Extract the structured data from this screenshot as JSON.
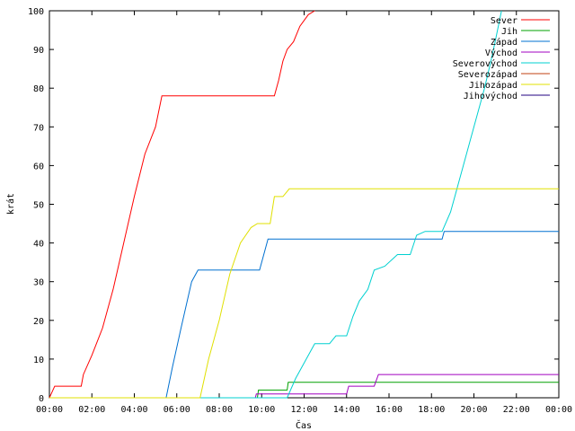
{
  "chart_data": {
    "type": "line",
    "xlabel": "Čas",
    "ylabel": "krát",
    "ylim": [
      0,
      100
    ],
    "xlim": [
      0,
      24
    ],
    "x_ticks": [
      "00:00",
      "02:00",
      "04:00",
      "06:00",
      "08:00",
      "10:00",
      "12:00",
      "14:00",
      "16:00",
      "18:00",
      "20:00",
      "22:00",
      "00:00"
    ],
    "y_ticks": [
      0,
      10,
      20,
      30,
      40,
      50,
      60,
      70,
      80,
      90,
      100
    ],
    "legend_position": "top-right",
    "grid": false,
    "series": [
      {
        "name": "Sever",
        "color": "#ff0000",
        "points": [
          [
            0,
            0
          ],
          [
            0.25,
            3
          ],
          [
            1.5,
            3
          ],
          [
            1.6,
            6
          ],
          [
            2.0,
            11
          ],
          [
            2.5,
            18
          ],
          [
            3.0,
            28
          ],
          [
            3.5,
            40
          ],
          [
            4.0,
            52
          ],
          [
            4.5,
            63
          ],
          [
            5.0,
            70
          ],
          [
            5.3,
            78
          ],
          [
            10.6,
            78
          ],
          [
            10.8,
            82
          ],
          [
            11.0,
            87
          ],
          [
            11.2,
            90
          ],
          [
            11.5,
            92
          ],
          [
            11.8,
            96
          ],
          [
            12.2,
            99
          ],
          [
            12.5,
            100
          ]
        ]
      },
      {
        "name": "Jih",
        "color": "#00a000",
        "points": [
          [
            0,
            0
          ],
          [
            9.8,
            0
          ],
          [
            9.85,
            2
          ],
          [
            11.2,
            2
          ],
          [
            11.25,
            4
          ],
          [
            24,
            4
          ]
        ]
      },
      {
        "name": "Západ",
        "color": "#0070d0",
        "points": [
          [
            0,
            0
          ],
          [
            5.5,
            0
          ],
          [
            5.8,
            8
          ],
          [
            6.2,
            18
          ],
          [
            6.7,
            30
          ],
          [
            7.0,
            33
          ],
          [
            9.9,
            33
          ],
          [
            10.3,
            41
          ],
          [
            17.0,
            41
          ],
          [
            18.5,
            41
          ],
          [
            18.6,
            43
          ],
          [
            24,
            43
          ]
        ]
      },
      {
        "name": "Východ",
        "color": "#a000c0",
        "points": [
          [
            0,
            0
          ],
          [
            9.7,
            0
          ],
          [
            9.75,
            1
          ],
          [
            14.0,
            1
          ],
          [
            14.1,
            3
          ],
          [
            15.3,
            3
          ],
          [
            15.5,
            6
          ],
          [
            24,
            6
          ]
        ]
      },
      {
        "name": "Severovýchod",
        "color": "#00d0d0",
        "points": [
          [
            0,
            0
          ],
          [
            11.2,
            0
          ],
          [
            11.6,
            5
          ],
          [
            12.1,
            10
          ],
          [
            12.5,
            14
          ],
          [
            13.2,
            14
          ],
          [
            13.5,
            16
          ],
          [
            14.0,
            16
          ],
          [
            14.3,
            21
          ],
          [
            14.6,
            25
          ],
          [
            15.0,
            28
          ],
          [
            15.3,
            33
          ],
          [
            15.8,
            34
          ],
          [
            16.4,
            37
          ],
          [
            17.0,
            37
          ],
          [
            17.3,
            42
          ],
          [
            17.7,
            43
          ],
          [
            18.5,
            43
          ],
          [
            18.9,
            48
          ],
          [
            19.2,
            54
          ],
          [
            19.5,
            60
          ],
          [
            20.0,
            70
          ],
          [
            20.5,
            80
          ],
          [
            20.8,
            87
          ],
          [
            21.0,
            92
          ],
          [
            21.3,
            100
          ]
        ]
      },
      {
        "name": "Severozápad",
        "color": "#c04010",
        "points": []
      },
      {
        "name": "Jihozápad",
        "color": "#e0e000",
        "points": [
          [
            0,
            0
          ],
          [
            7.1,
            0
          ],
          [
            7.5,
            10
          ],
          [
            8.0,
            20
          ],
          [
            8.5,
            32
          ],
          [
            9.0,
            40
          ],
          [
            9.5,
            44
          ],
          [
            9.8,
            45
          ],
          [
            10.4,
            45
          ],
          [
            10.6,
            52
          ],
          [
            11.0,
            52
          ],
          [
            11.3,
            54
          ],
          [
            24,
            54
          ]
        ]
      },
      {
        "name": "Jihovýchod",
        "color": "#200080",
        "points": []
      }
    ]
  }
}
